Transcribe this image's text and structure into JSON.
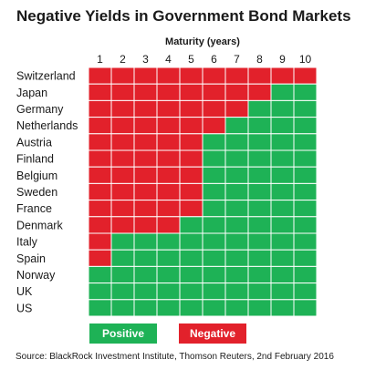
{
  "colors": {
    "positive": "#1eb256",
    "negative": "#e2212b",
    "grid_line": "#ffffff"
  },
  "chart_data": {
    "type": "heatmap",
    "title": "Negative Yields in Government Bond Markets",
    "xlabel": "Maturity (years)",
    "x_ticks": [
      "1",
      "2",
      "3",
      "4",
      "5",
      "6",
      "7",
      "8",
      "9",
      "10"
    ],
    "y_categories": [
      "Switzerland",
      "Japan",
      "Germany",
      "Netherlands",
      "Austria",
      "Finland",
      "Belgium",
      "Sweden",
      "France",
      "Denmark",
      "Italy",
      "Spain",
      "Norway",
      "UK",
      "US"
    ],
    "negative_through_maturity": [
      10,
      8,
      7,
      6,
      5,
      5,
      5,
      5,
      5,
      4,
      1,
      1,
      0,
      0,
      0
    ],
    "cell_values": [
      [
        "Negative",
        "Negative",
        "Negative",
        "Negative",
        "Negative",
        "Negative",
        "Negative",
        "Negative",
        "Negative",
        "Negative"
      ],
      [
        "Negative",
        "Negative",
        "Negative",
        "Negative",
        "Negative",
        "Negative",
        "Negative",
        "Negative",
        "Positive",
        "Positive"
      ],
      [
        "Negative",
        "Negative",
        "Negative",
        "Negative",
        "Negative",
        "Negative",
        "Negative",
        "Positive",
        "Positive",
        "Positive"
      ],
      [
        "Negative",
        "Negative",
        "Negative",
        "Negative",
        "Negative",
        "Negative",
        "Positive",
        "Positive",
        "Positive",
        "Positive"
      ],
      [
        "Negative",
        "Negative",
        "Negative",
        "Negative",
        "Negative",
        "Positive",
        "Positive",
        "Positive",
        "Positive",
        "Positive"
      ],
      [
        "Negative",
        "Negative",
        "Negative",
        "Negative",
        "Negative",
        "Positive",
        "Positive",
        "Positive",
        "Positive",
        "Positive"
      ],
      [
        "Negative",
        "Negative",
        "Negative",
        "Negative",
        "Negative",
        "Positive",
        "Positive",
        "Positive",
        "Positive",
        "Positive"
      ],
      [
        "Negative",
        "Negative",
        "Negative",
        "Negative",
        "Negative",
        "Positive",
        "Positive",
        "Positive",
        "Positive",
        "Positive"
      ],
      [
        "Negative",
        "Negative",
        "Negative",
        "Negative",
        "Negative",
        "Positive",
        "Positive",
        "Positive",
        "Positive",
        "Positive"
      ],
      [
        "Negative",
        "Negative",
        "Negative",
        "Negative",
        "Positive",
        "Positive",
        "Positive",
        "Positive",
        "Positive",
        "Positive"
      ],
      [
        "Negative",
        "Positive",
        "Positive",
        "Positive",
        "Positive",
        "Positive",
        "Positive",
        "Positive",
        "Positive",
        "Positive"
      ],
      [
        "Negative",
        "Positive",
        "Positive",
        "Positive",
        "Positive",
        "Positive",
        "Positive",
        "Positive",
        "Positive",
        "Positive"
      ],
      [
        "Positive",
        "Positive",
        "Positive",
        "Positive",
        "Positive",
        "Positive",
        "Positive",
        "Positive",
        "Positive",
        "Positive"
      ],
      [
        "Positive",
        "Positive",
        "Positive",
        "Positive",
        "Positive",
        "Positive",
        "Positive",
        "Positive",
        "Positive",
        "Positive"
      ],
      [
        "Positive",
        "Positive",
        "Positive",
        "Positive",
        "Positive",
        "Positive",
        "Positive",
        "Positive",
        "Positive",
        "Positive"
      ]
    ],
    "legend": [
      {
        "label": "Positive",
        "color": "#1eb256"
      },
      {
        "label": "Negative",
        "color": "#e2212b"
      }
    ],
    "legend_placement": "bottom",
    "source": "Source: BlackRock Investment Institute, Thomson Reuters, 2nd February 2016"
  }
}
